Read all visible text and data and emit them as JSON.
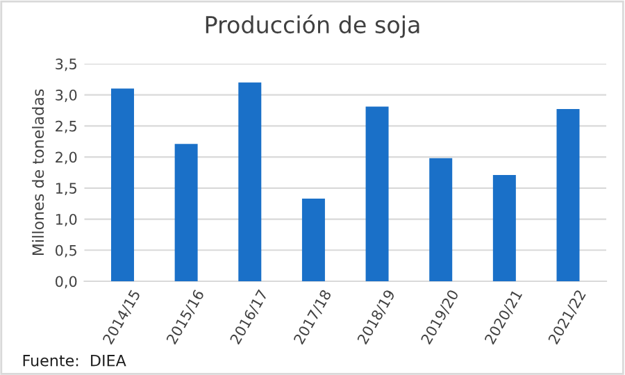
{
  "chart_data": {
    "type": "bar",
    "title": "Producción de soja",
    "ylabel": "Millones de toneladas",
    "categories": [
      "2014/15",
      "2015/16",
      "2016/17",
      "2017/18",
      "2018/19",
      "2019/20",
      "2020/21",
      "2021/22"
    ],
    "values": [
      3.1,
      2.21,
      3.2,
      1.33,
      2.81,
      1.98,
      1.71,
      2.77
    ],
    "color": "#1a70c8",
    "ylim": [
      0,
      3.5
    ],
    "yticks": [
      {
        "value": 0,
        "label": "0,0"
      },
      {
        "value": 0.5,
        "label": "0,5"
      },
      {
        "value": 1,
        "label": "1,0"
      },
      {
        "value": 1.5,
        "label": "1,5"
      },
      {
        "value": 2,
        "label": "2,0"
      },
      {
        "value": 2.5,
        "label": "2,5"
      },
      {
        "value": 3,
        "label": "3,0"
      },
      {
        "value": 3.5,
        "label": "3,5"
      }
    ],
    "grid": "y",
    "annotations": [
      "Fuente:  DIEA"
    ]
  }
}
